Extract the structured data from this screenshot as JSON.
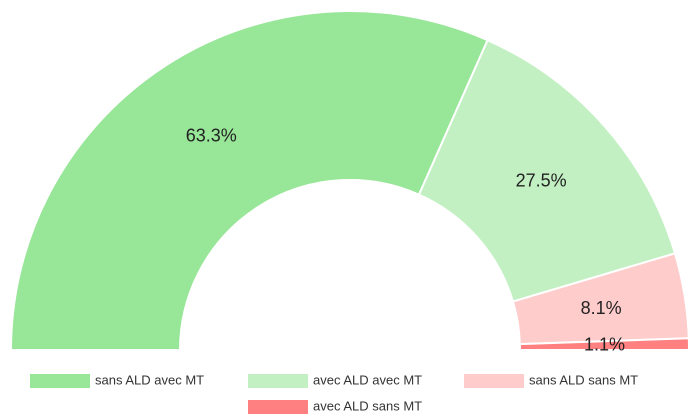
{
  "chart_data": {
    "type": "pie",
    "style": "half-donut",
    "categories": [
      "sans ALD avec MT",
      "avec ALD avec MT",
      "sans ALD sans MT",
      "avec ALD sans MT"
    ],
    "values": [
      63.3,
      27.5,
      8.1,
      1.1
    ],
    "value_labels": [
      "63.3%",
      "27.5%",
      "8.1%",
      "1.1%"
    ],
    "colors": [
      "#98e698",
      "#c2f0c2",
      "#ffcccc",
      "#ff8080"
    ],
    "legend": "bottom"
  }
}
